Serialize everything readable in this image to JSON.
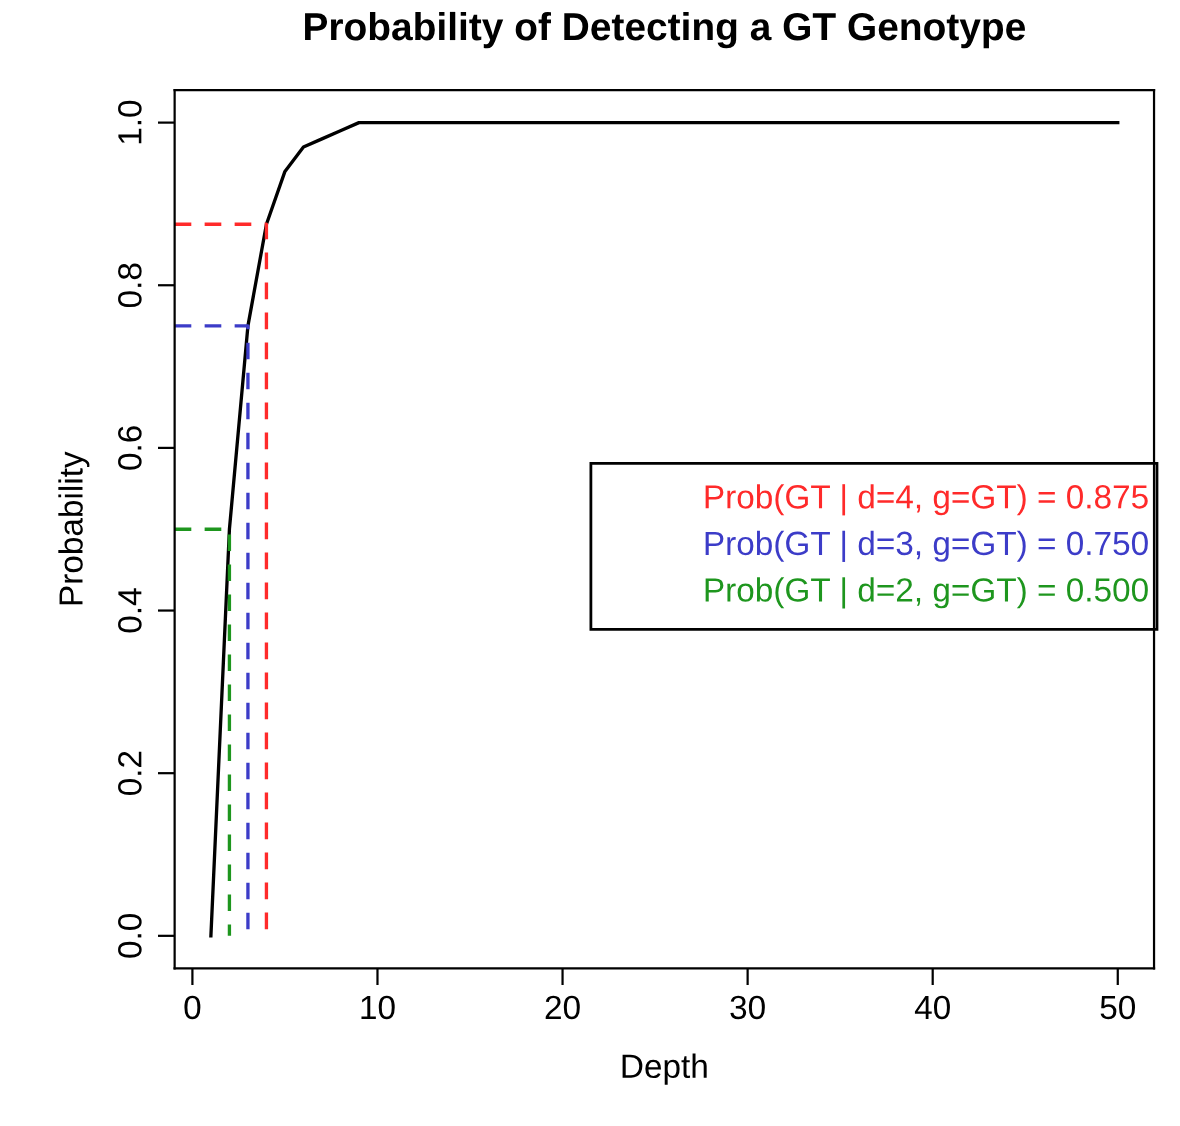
{
  "chart_data": {
    "type": "line",
    "title": "Probability of Detecting a GT Genotype",
    "xlabel": "Depth",
    "ylabel": "Probability",
    "series": [
      {
        "color": "#000000",
        "x": [
          1,
          2,
          3,
          4,
          5,
          6,
          7,
          8,
          9,
          10,
          12,
          50
        ],
        "values": [
          0,
          0.5,
          0.75,
          0.875,
          0.94,
          0.97,
          0.98,
          0.99,
          1.0,
          1.0,
          1.0,
          1.0
        ],
        "line_style": "solid"
      },
      {
        "color": "#ff2a2a",
        "x": [
          -0.96,
          4,
          4
        ],
        "values": [
          0.875,
          0.875,
          0
        ],
        "line_style": "dashed"
      },
      {
        "color": "#3c3cc8",
        "x": [
          -0.96,
          3,
          3
        ],
        "values": [
          0.75,
          0.75,
          0
        ],
        "line_style": "dashed"
      },
      {
        "color": "#1e961e",
        "x": [
          -0.96,
          2,
          2
        ],
        "values": [
          0.5,
          0.5,
          0
        ],
        "line_style": "dashed"
      }
    ],
    "annotations": [
      "Prob(GT | d=4, g=GT) = 0.875",
      "Prob(GT | d=3, g=GT) = 0.750",
      "Prob(GT | d=2, g=GT) = 0.500"
    ],
    "xlim": [
      -0.96,
      51.96
    ],
    "ylim": [
      -0.04,
      1.04
    ],
    "xticks": [
      0,
      10,
      20,
      30,
      40,
      50
    ],
    "yticks": [
      {
        "value": 0,
        "label": "0.0"
      },
      {
        "value": 0.2,
        "label": "0.2"
      },
      {
        "value": 0.4,
        "label": "0.4"
      },
      {
        "value": 0.6,
        "label": "0.6"
      },
      {
        "value": 0.8,
        "label": "0.8"
      },
      {
        "value": 1,
        "label": "1.0"
      }
    ],
    "grid": false,
    "legend": false,
    "marker": "none"
  }
}
